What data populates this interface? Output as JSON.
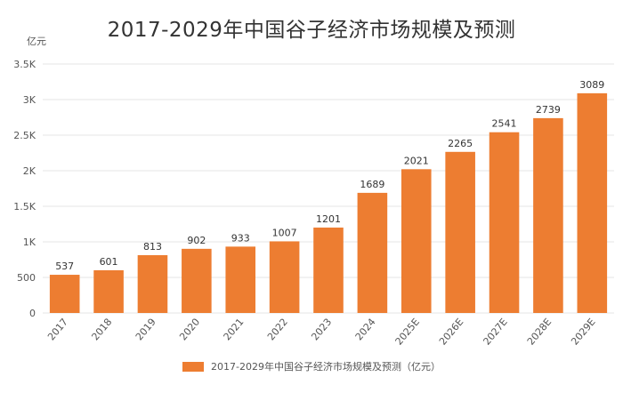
{
  "chart_data": {
    "type": "bar",
    "title": "2017-2029年中国谷子经济市场规模及预测",
    "unit": "亿元",
    "categories": [
      "2017",
      "2018",
      "2019",
      "2020",
      "2021",
      "2022",
      "2023",
      "2024",
      "2025E",
      "2026E",
      "2027E",
      "2028E",
      "2029E"
    ],
    "series": [
      {
        "name": "2017-2029年中国谷子经济市场规模及预测（亿元）",
        "values": [
          537,
          601,
          813,
          902,
          933,
          1007,
          1201,
          1689,
          2021,
          2265,
          2541,
          2739,
          3089
        ],
        "color": "#ED7D31"
      }
    ],
    "y_ticks": [
      0,
      500,
      1000,
      1500,
      2000,
      2500,
      3000,
      3500
    ],
    "y_tick_labels": [
      "0",
      "500",
      "1K",
      "1.5K",
      "2K",
      "2.5K",
      "3K",
      "3.5K"
    ],
    "ylim": [
      0,
      3500
    ],
    "grid": true,
    "legend_position": "bottom"
  }
}
